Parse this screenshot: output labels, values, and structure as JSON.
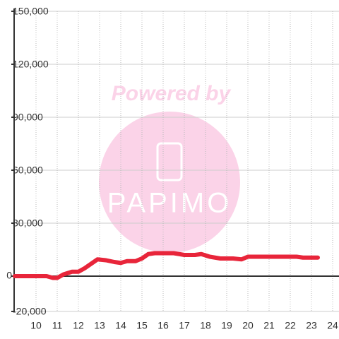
{
  "chart_data": {
    "type": "line",
    "x": [
      9,
      10.5,
      10.8,
      11,
      11.3,
      11.7,
      12,
      12.3,
      12.6,
      12.9,
      13.3,
      13.7,
      14,
      14.3,
      14.7,
      15,
      15.3,
      15.6,
      16,
      16.5,
      17,
      17.5,
      17.8,
      18.2,
      18.7,
      19.3,
      19.7,
      20,
      20.5,
      21,
      22,
      22.3,
      22.6,
      23.3
    ],
    "values": [
      0,
      0,
      -1000,
      -1000,
      1000,
      2500,
      2500,
      4500,
      7000,
      9500,
      9000,
      8000,
      7500,
      8500,
      8500,
      10000,
      12500,
      13000,
      13000,
      13000,
      12000,
      12000,
      12500,
      11000,
      10000,
      10000,
      9500,
      11000,
      11000,
      11000,
      11000,
      11000,
      10500,
      10500
    ],
    "color": "#e8253a",
    "xlim": [
      9,
      24.3
    ],
    "xticks": [
      10,
      11,
      12,
      13,
      14,
      15,
      16,
      17,
      18,
      19,
      20,
      21,
      22,
      23,
      24
    ],
    "ylim": [
      -20000,
      150000
    ],
    "yticks": [
      {
        "value": -20000,
        "label": "-20,000"
      },
      0,
      {
        "value": 30000,
        "label": "30,000"
      },
      {
        "value": 60000,
        "label": "60,000"
      },
      {
        "value": 90000,
        "label": "90,000"
      },
      {
        "value": 120000,
        "label": "120,000"
      },
      {
        "value": 150000,
        "label": "150,000"
      }
    ],
    "grid": true,
    "watermark": {
      "line1": "Powered by",
      "line2": "PAPIMO"
    }
  }
}
